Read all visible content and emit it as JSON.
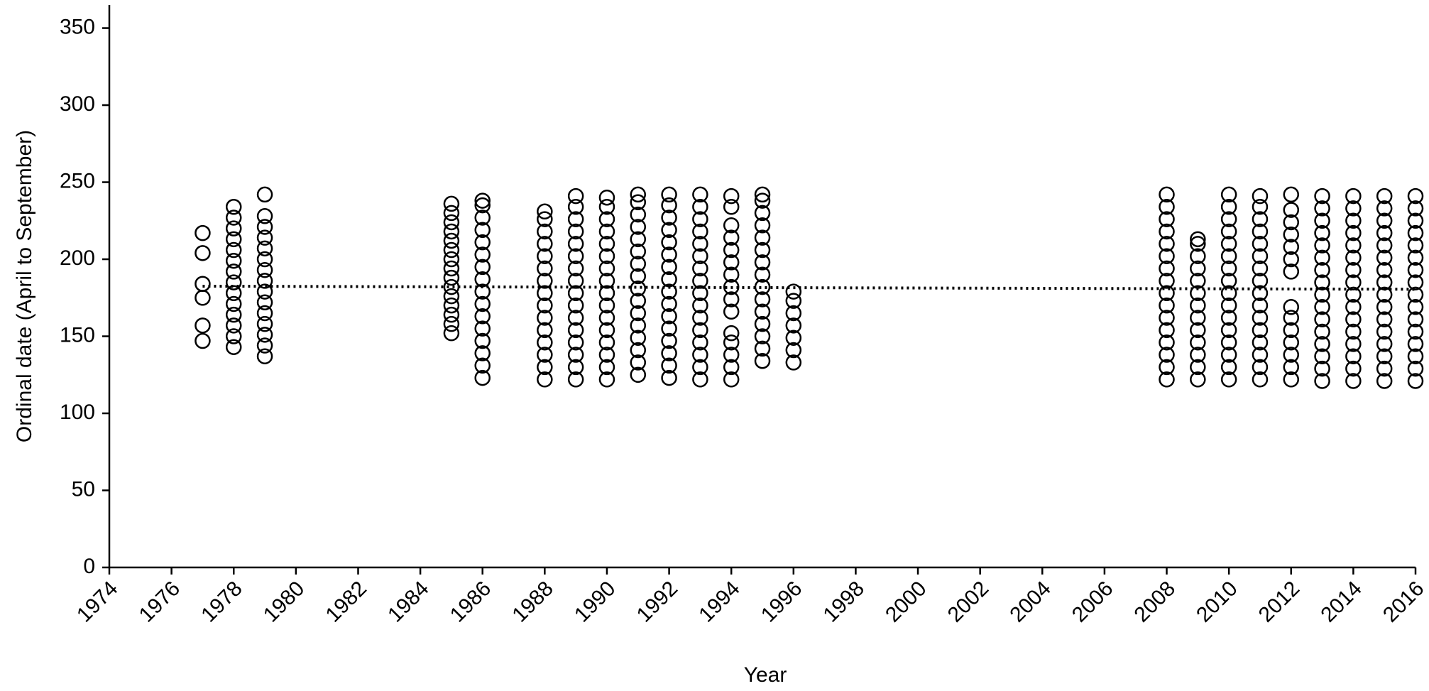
{
  "chart_data": {
    "type": "scatter",
    "x_label": "Year",
    "y_label": "Ordinal date (April to September)",
    "xlim": [
      1974,
      2016
    ],
    "xticks": [
      1974,
      1976,
      1978,
      1980,
      1982,
      1984,
      1986,
      1988,
      1990,
      1992,
      1994,
      1996,
      1998,
      2000,
      2002,
      2004,
      2006,
      2008,
      2010,
      2012,
      2014,
      2016
    ],
    "ylim": [
      0,
      365
    ],
    "yticks": [
      0,
      50,
      100,
      150,
      200,
      250,
      300,
      350
    ],
    "marker_color": "#000000",
    "trend": {
      "color": "#000000",
      "x": [
        1977,
        2016
      ],
      "values": [
        182.5,
        180.5
      ]
    },
    "series": [
      {
        "x": [
          1977,
          1977,
          1977,
          1977,
          1977,
          1977
        ],
        "values": [
          147,
          157,
          175,
          184,
          204,
          217
        ]
      },
      {
        "x": [
          1978,
          1978,
          1978,
          1978,
          1978,
          1978,
          1978,
          1978,
          1978,
          1978,
          1978,
          1978,
          1978,
          1978
        ],
        "values": [
          143,
          150,
          157,
          164,
          171,
          178,
          185,
          192,
          199,
          206,
          213,
          220,
          227,
          234
        ]
      },
      {
        "x": [
          1979,
          1979,
          1979,
          1979,
          1979,
          1979,
          1979,
          1979,
          1979,
          1979,
          1979,
          1979,
          1979,
          1979,
          1979
        ],
        "values": [
          137,
          144,
          151,
          158,
          165,
          172,
          179,
          186,
          193,
          200,
          207,
          214,
          221,
          228,
          242
        ]
      },
      {
        "x": [
          1985,
          1985,
          1985,
          1985,
          1985,
          1985,
          1985,
          1985,
          1985,
          1985,
          1985,
          1985,
          1985,
          1985,
          1985
        ],
        "values": [
          152,
          158,
          164,
          170,
          176,
          182,
          188,
          194,
          200,
          206,
          212,
          218,
          224,
          230,
          236
        ]
      },
      {
        "x": [
          1986,
          1986,
          1986,
          1986,
          1986,
          1986,
          1986,
          1986,
          1986,
          1986,
          1986,
          1986,
          1986,
          1986,
          1986,
          1986
        ],
        "values": [
          123,
          131,
          139,
          147,
          155,
          163,
          171,
          179,
          187,
          195,
          203,
          211,
          219,
          227,
          235,
          238
        ]
      },
      {
        "x": [
          1988,
          1988,
          1988,
          1988,
          1988,
          1988,
          1988,
          1988,
          1988,
          1988,
          1988,
          1988,
          1988,
          1988,
          1988
        ],
        "values": [
          122,
          130,
          138,
          146,
          154,
          162,
          170,
          178,
          186,
          194,
          202,
          210,
          218,
          226,
          231
        ]
      },
      {
        "x": [
          1989,
          1989,
          1989,
          1989,
          1989,
          1989,
          1989,
          1989,
          1989,
          1989,
          1989,
          1989,
          1989,
          1989,
          1989,
          1989
        ],
        "values": [
          122,
          130,
          138,
          146,
          154,
          162,
          170,
          178,
          186,
          194,
          202,
          210,
          218,
          226,
          234,
          241
        ]
      },
      {
        "x": [
          1990,
          1990,
          1990,
          1990,
          1990,
          1990,
          1990,
          1990,
          1990,
          1990,
          1990,
          1990,
          1990,
          1990,
          1990,
          1990
        ],
        "values": [
          122,
          130,
          138,
          146,
          154,
          162,
          170,
          178,
          186,
          194,
          202,
          210,
          218,
          226,
          234,
          240
        ]
      },
      {
        "x": [
          1991,
          1991,
          1991,
          1991,
          1991,
          1991,
          1991,
          1991,
          1991,
          1991,
          1991,
          1991,
          1991,
          1991,
          1991,
          1991
        ],
        "values": [
          125,
          133,
          141,
          149,
          157,
          165,
          173,
          181,
          189,
          197,
          205,
          213,
          221,
          229,
          237,
          242
        ]
      },
      {
        "x": [
          1992,
          1992,
          1992,
          1992,
          1992,
          1992,
          1992,
          1992,
          1992,
          1992,
          1992,
          1992,
          1992,
          1992,
          1992,
          1992
        ],
        "values": [
          123,
          131,
          139,
          147,
          155,
          163,
          171,
          179,
          187,
          195,
          203,
          211,
          219,
          227,
          235,
          242
        ]
      },
      {
        "x": [
          1993,
          1993,
          1993,
          1993,
          1993,
          1993,
          1993,
          1993,
          1993,
          1993,
          1993,
          1993,
          1993,
          1993,
          1993,
          1993
        ],
        "values": [
          122,
          130,
          138,
          146,
          154,
          162,
          170,
          178,
          186,
          194,
          202,
          210,
          218,
          226,
          234,
          242
        ]
      },
      {
        "x": [
          1994,
          1994,
          1994,
          1994,
          1994,
          1994,
          1994,
          1994,
          1994,
          1994,
          1994,
          1994,
          1994,
          1994,
          1994
        ],
        "values": [
          122,
          130,
          138,
          146,
          152,
          166,
          174,
          182,
          190,
          198,
          206,
          214,
          222,
          234,
          241
        ]
      },
      {
        "x": [
          1995,
          1995,
          1995,
          1995,
          1995,
          1995,
          1995,
          1995,
          1995,
          1995,
          1995,
          1995,
          1995,
          1995,
          1995
        ],
        "values": [
          134,
          142,
          150,
          158,
          166,
          174,
          182,
          190,
          198,
          206,
          214,
          222,
          230,
          238,
          242
        ]
      },
      {
        "x": [
          1996,
          1996,
          1996,
          1996,
          1996,
          1996,
          1996
        ],
        "values": [
          133,
          141,
          149,
          157,
          165,
          173,
          179
        ]
      },
      {
        "x": [
          2008,
          2008,
          2008,
          2008,
          2008,
          2008,
          2008,
          2008,
          2008,
          2008,
          2008,
          2008,
          2008,
          2008,
          2008,
          2008
        ],
        "values": [
          122,
          130,
          138,
          146,
          154,
          162,
          170,
          178,
          186,
          194,
          202,
          210,
          218,
          226,
          234,
          242
        ]
      },
      {
        "x": [
          2009,
          2009,
          2009,
          2009,
          2009,
          2009,
          2009,
          2009,
          2009,
          2009,
          2009,
          2009,
          2009
        ],
        "values": [
          122,
          130,
          138,
          146,
          154,
          162,
          170,
          178,
          186,
          194,
          202,
          210,
          213
        ]
      },
      {
        "x": [
          2010,
          2010,
          2010,
          2010,
          2010,
          2010,
          2010,
          2010,
          2010,
          2010,
          2010,
          2010,
          2010,
          2010,
          2010,
          2010
        ],
        "values": [
          122,
          130,
          138,
          146,
          154,
          162,
          170,
          178,
          186,
          194,
          202,
          210,
          218,
          226,
          234,
          242
        ]
      },
      {
        "x": [
          2011,
          2011,
          2011,
          2011,
          2011,
          2011,
          2011,
          2011,
          2011,
          2011,
          2011,
          2011,
          2011,
          2011,
          2011,
          2011
        ],
        "values": [
          122,
          130,
          138,
          146,
          154,
          162,
          170,
          178,
          186,
          194,
          202,
          210,
          218,
          226,
          234,
          241
        ]
      },
      {
        "x": [
          2012,
          2012,
          2012,
          2012,
          2012,
          2012,
          2012,
          2012,
          2012,
          2012,
          2012,
          2012,
          2012,
          2012
        ],
        "values": [
          122,
          130,
          138,
          146,
          154,
          162,
          169,
          192,
          200,
          208,
          216,
          224,
          232,
          242
        ]
      },
      {
        "x": [
          2013,
          2013,
          2013,
          2013,
          2013,
          2013,
          2013,
          2013,
          2013,
          2013,
          2013,
          2013,
          2013,
          2013,
          2013,
          2013
        ],
        "values": [
          121,
          129,
          137,
          145,
          153,
          161,
          169,
          177,
          185,
          193,
          201,
          209,
          217,
          225,
          233,
          241
        ]
      },
      {
        "x": [
          2014,
          2014,
          2014,
          2014,
          2014,
          2014,
          2014,
          2014,
          2014,
          2014,
          2014,
          2014,
          2014,
          2014,
          2014,
          2014
        ],
        "values": [
          121,
          129,
          137,
          145,
          153,
          161,
          169,
          177,
          185,
          193,
          201,
          209,
          217,
          225,
          233,
          241
        ]
      },
      {
        "x": [
          2015,
          2015,
          2015,
          2015,
          2015,
          2015,
          2015,
          2015,
          2015,
          2015,
          2015,
          2015,
          2015,
          2015,
          2015,
          2015
        ],
        "values": [
          121,
          129,
          137,
          145,
          153,
          161,
          169,
          177,
          185,
          193,
          201,
          209,
          217,
          225,
          233,
          241
        ]
      },
      {
        "x": [
          2016,
          2016,
          2016,
          2016,
          2016,
          2016,
          2016,
          2016,
          2016,
          2016,
          2016,
          2016,
          2016,
          2016,
          2016,
          2016
        ],
        "values": [
          121,
          129,
          137,
          145,
          153,
          161,
          169,
          177,
          185,
          193,
          201,
          209,
          217,
          225,
          233,
          241
        ]
      }
    ]
  }
}
